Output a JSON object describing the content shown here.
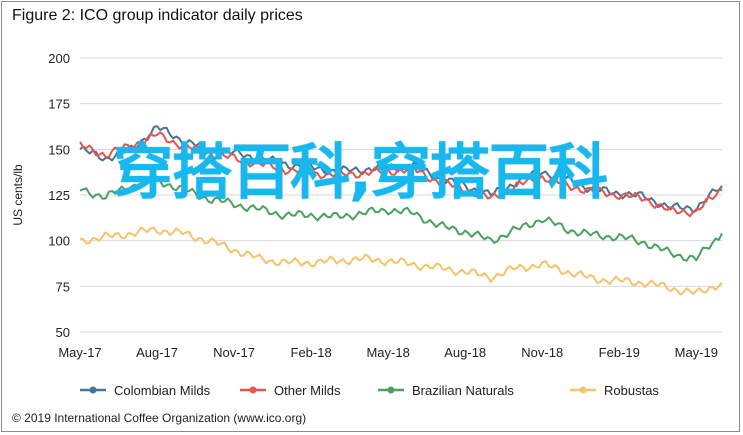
{
  "chart_data": {
    "type": "line",
    "title": "Figure 2: ICO group indicator daily prices",
    "ylabel": "US cents/lb",
    "xlabel": "",
    "ylim": [
      50,
      200
    ],
    "yticks": [
      "200",
      "175",
      "150",
      "125",
      "100",
      "75",
      "50"
    ],
    "xtick_labels": [
      "May-17",
      "Aug-17",
      "Nov-17",
      "Feb-18",
      "May-18",
      "Aug-18",
      "Nov-18",
      "Feb-19",
      "May-19"
    ],
    "x": [
      "May-17",
      "Jun-17",
      "Jul-17",
      "Aug-17",
      "Sep-17",
      "Oct-17",
      "Nov-17",
      "Dec-17",
      "Jan-18",
      "Feb-18",
      "Mar-18",
      "Apr-18",
      "May-18",
      "Jun-18",
      "Jul-18",
      "Aug-18",
      "Sep-18",
      "Oct-18",
      "Nov-18",
      "Dec-18",
      "Jan-19",
      "Feb-19",
      "Mar-19",
      "Apr-19",
      "May-19",
      "Jun-19"
    ],
    "grid": true,
    "legend_position": "bottom",
    "series": [
      {
        "name": "Colombian Milds",
        "color": "#4a7394",
        "values": [
          150,
          145,
          150,
          162,
          155,
          150,
          148,
          145,
          142,
          140,
          138,
          139,
          140,
          141,
          134,
          130,
          125,
          132,
          138,
          133,
          128,
          126,
          124,
          118,
          118,
          130
        ]
      },
      {
        "name": "Other Milds",
        "color": "#e8554b",
        "values": [
          152,
          147,
          152,
          158,
          152,
          148,
          145,
          142,
          139,
          137,
          136,
          137,
          138,
          139,
          132,
          128,
          123,
          130,
          135,
          130,
          127,
          125,
          123,
          116,
          116,
          128
        ]
      },
      {
        "name": "Brazilian Naturals",
        "color": "#4aa25e",
        "values": [
          128,
          124,
          130,
          133,
          128,
          123,
          120,
          117,
          114,
          114,
          113,
          115,
          117,
          115,
          108,
          105,
          100,
          106,
          112,
          106,
          103,
          102,
          99,
          93,
          90,
          104
        ]
      },
      {
        "name": "Robustas",
        "color": "#f6c26b",
        "values": [
          100,
          102,
          104,
          106,
          104,
          100,
          95,
          90,
          88,
          88,
          89,
          90,
          89,
          87,
          85,
          83,
          80,
          85,
          87,
          83,
          79,
          78,
          77,
          74,
          71,
          77
        ]
      }
    ]
  },
  "footer": {
    "credit": "© 2019 International Coffee Organization (www.ico.org)"
  },
  "overlay": {
    "watermark": "穿搭百科,穿搭百科"
  }
}
